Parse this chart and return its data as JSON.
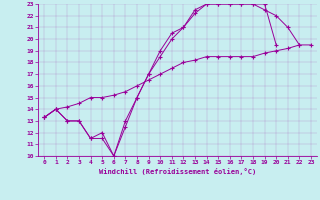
{
  "xlabel": "Windchill (Refroidissement éolien,°C)",
  "bg_color": "#c8eef0",
  "line_color": "#990099",
  "marker": "+",
  "xlim": [
    -0.5,
    23.5
  ],
  "ylim": [
    10,
    23
  ],
  "xticks": [
    0,
    1,
    2,
    3,
    4,
    5,
    6,
    7,
    8,
    9,
    10,
    11,
    12,
    13,
    14,
    15,
    16,
    17,
    18,
    19,
    20,
    21,
    22,
    23
  ],
  "yticks": [
    10,
    11,
    12,
    13,
    14,
    15,
    16,
    17,
    18,
    19,
    20,
    21,
    22,
    23
  ],
  "series": [
    {
      "x": [
        0,
        1,
        2,
        3,
        4,
        5,
        6,
        7,
        8,
        9,
        10,
        11,
        12,
        13,
        14,
        15,
        16,
        17,
        18,
        19,
        20
      ],
      "y": [
        13.3,
        14.0,
        13.0,
        13.0,
        11.5,
        11.5,
        10.0,
        12.5,
        15.0,
        17.0,
        19.0,
        20.5,
        21.0,
        22.5,
        23.0,
        23.0,
        23.0,
        23.0,
        23.0,
        23.0,
        19.5
      ]
    },
    {
      "x": [
        0,
        1,
        2,
        3,
        4,
        5,
        6,
        7,
        8,
        9,
        10,
        11,
        12,
        13,
        14,
        15,
        16,
        17,
        18,
        19,
        20,
        21,
        22
      ],
      "y": [
        13.3,
        14.0,
        13.0,
        13.0,
        11.5,
        12.0,
        10.0,
        13.0,
        15.0,
        17.0,
        18.5,
        20.0,
        21.0,
        22.2,
        23.0,
        23.0,
        23.0,
        23.0,
        23.0,
        22.5,
        22.0,
        21.0,
        19.5
      ]
    },
    {
      "x": [
        0,
        1,
        2,
        3,
        4,
        5,
        6,
        7,
        8,
        9,
        10,
        11,
        12,
        13,
        14,
        15,
        16,
        17,
        18,
        19,
        20,
        21,
        22,
        23
      ],
      "y": [
        13.3,
        14.0,
        14.2,
        14.5,
        15.0,
        15.0,
        15.2,
        15.5,
        16.0,
        16.5,
        17.0,
        17.5,
        18.0,
        18.2,
        18.5,
        18.5,
        18.5,
        18.5,
        18.5,
        18.8,
        19.0,
        19.2,
        19.5,
        19.5
      ]
    }
  ]
}
